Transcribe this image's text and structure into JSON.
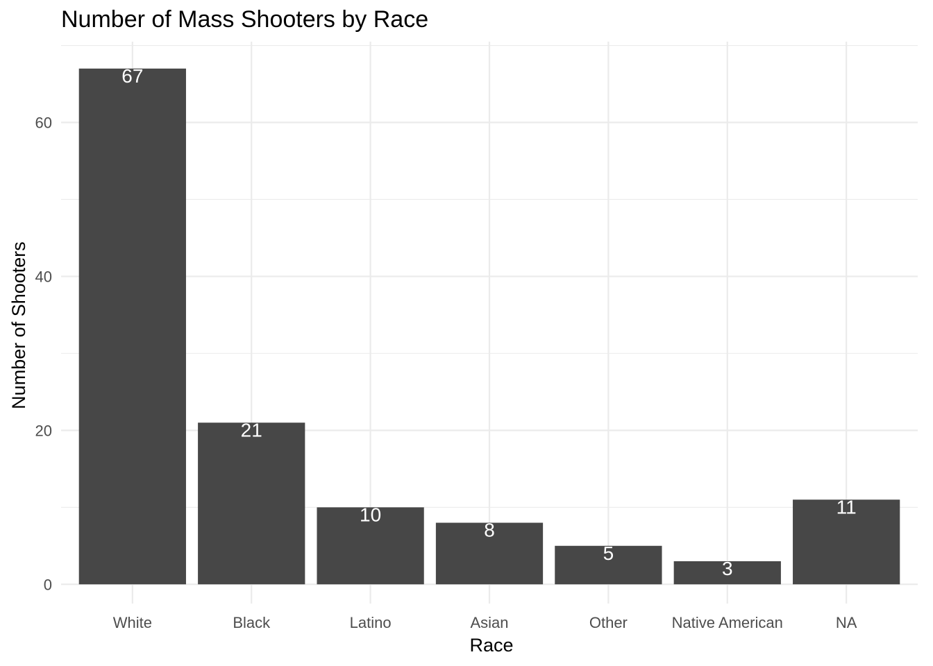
{
  "chart_data": {
    "type": "bar",
    "title": "Number of Mass Shooters by Race",
    "xlabel": "Race",
    "ylabel": "Number of Shooters",
    "categories": [
      "White",
      "Black",
      "Latino",
      "Asian",
      "Other",
      "Native American",
      "NA"
    ],
    "values": [
      67,
      21,
      10,
      8,
      5,
      3,
      11
    ],
    "data_labels": [
      "67",
      "21",
      "10",
      "8",
      "5",
      "3",
      "11"
    ],
    "ylim": [
      -2.5,
      70.5
    ],
    "y_ticks": [
      0,
      20,
      40,
      60
    ],
    "y_tick_labels": [
      "0",
      "20",
      "40",
      "60"
    ],
    "y_minor_ticks": [
      10,
      30,
      50,
      70
    ],
    "grid": true,
    "legend": "none",
    "bar_color": "#474747",
    "label_color": "#ffffff",
    "grid_color": "#ebebeb",
    "background_color": "#ffffff"
  }
}
